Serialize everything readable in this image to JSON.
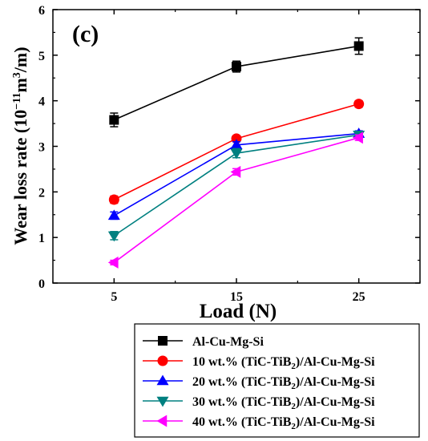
{
  "chart_data": {
    "type": "line",
    "panel_label": "(c)",
    "xlabel": "Load (N)",
    "ylabel_main": "Wear loss rate (10",
    "ylabel_exp1": "−11",
    "ylabel_mid": "m",
    "ylabel_exp2": "3",
    "ylabel_end": "/m)",
    "x": [
      5,
      15,
      25
    ],
    "x_tick_labels": [
      "5",
      "15",
      "25"
    ],
    "xlim": [
      0,
      30
    ],
    "ylim": [
      0,
      6
    ],
    "y_ticks": [
      0,
      1,
      2,
      3,
      4,
      5,
      6
    ],
    "y_tick_labels": [
      "0",
      "1",
      "2",
      "3",
      "4",
      "5",
      "6"
    ],
    "grid": false,
    "legend_position": "below",
    "series": [
      {
        "name": "Al-Cu-Mg-Si",
        "legend_prefix": "",
        "legend_sub": "",
        "legend_suffix": "Al-Cu-Mg-Si",
        "values": [
          3.58,
          4.75,
          5.2
        ],
        "errors": [
          0.15,
          0.12,
          0.18
        ],
        "color": "#000000",
        "marker": "square"
      },
      {
        "name": "10 wt.% (TiC-TiB2)/Al-Cu-Mg-Si",
        "legend_prefix": "10 wt.% (TiC-TiB",
        "legend_sub": "2",
        "legend_suffix": ")/Al-Cu-Mg-Si",
        "values": [
          1.83,
          3.17,
          3.93
        ],
        "errors": [
          0.08,
          0.06,
          0.07
        ],
        "color": "#ff0000",
        "marker": "circle"
      },
      {
        "name": "20 wt.% (TiC-TiB2)/Al-Cu-Mg-Si",
        "legend_prefix": "20 wt.% (TiC-TiB",
        "legend_sub": "2",
        "legend_suffix": ")/Al-Cu-Mg-Si",
        "values": [
          1.48,
          3.03,
          3.28
        ],
        "errors": [
          0.08,
          0.07,
          0.06
        ],
        "color": "#0000ff",
        "marker": "triangle-up"
      },
      {
        "name": "30 wt.% (TiC-TiB2)/Al-Cu-Mg-Si",
        "legend_prefix": "30 wt.% (TiC-TiB",
        "legend_sub": "2",
        "legend_suffix": ")/Al-Cu-Mg-Si",
        "values": [
          1.04,
          2.85,
          3.25
        ],
        "errors": [
          0.09,
          0.1,
          0.07
        ],
        "color": "#008080",
        "marker": "triangle-down"
      },
      {
        "name": "40 wt.% (TiC-TiB2)/Al-Cu-Mg-Si",
        "legend_prefix": "40 wt.% (TiC-TiB",
        "legend_sub": "2",
        "legend_suffix": ")/Al-Cu-Mg-Si",
        "values": [
          0.45,
          2.44,
          3.19
        ],
        "errors": [
          0.05,
          0.07,
          0.06
        ],
        "color": "#ff00ff",
        "marker": "triangle-left"
      }
    ]
  }
}
